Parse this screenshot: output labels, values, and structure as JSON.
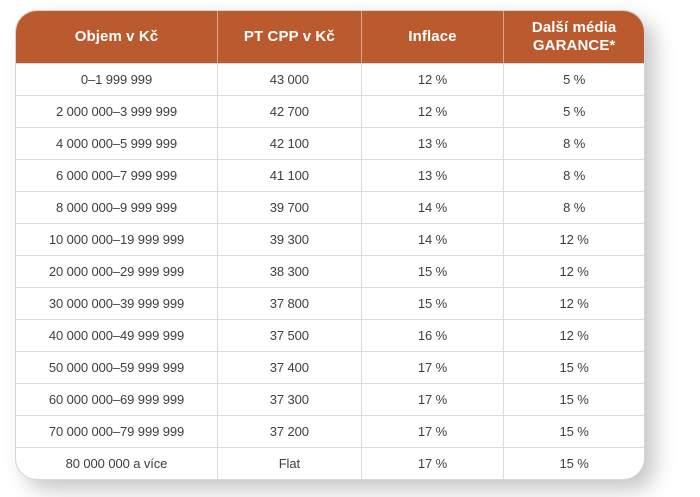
{
  "chart_data": {
    "type": "table",
    "columns": [
      "Objem v Kč",
      "PT CPP v Kč",
      "Inflace",
      "Další média\nGARANCE*"
    ],
    "rows": [
      [
        "0–1 999 999",
        "43 000",
        "12 %",
        "5 %"
      ],
      [
        "2 000 000–3 999 999",
        "42 700",
        "12 %",
        "5 %"
      ],
      [
        "4 000 000–5 999 999",
        "42 100",
        "13 %",
        "8 %"
      ],
      [
        "6 000 000–7 999 999",
        "41 100",
        "13 %",
        "8 %"
      ],
      [
        "8 000 000–9 999 999",
        "39 700",
        "14 %",
        "8 %"
      ],
      [
        "10 000 000–19 999 999",
        "39 300",
        "14 %",
        "12 %"
      ],
      [
        "20 000 000–29 999 999",
        "38 300",
        "15 %",
        "12 %"
      ],
      [
        "30 000 000–39 999 999",
        "37 800",
        "15 %",
        "12 %"
      ],
      [
        "40 000 000–49 999 999",
        "37 500",
        "16 %",
        "12 %"
      ],
      [
        "50 000 000–59 999 999",
        "37 400",
        "17 %",
        "15 %"
      ],
      [
        "60 000 000–69 999 999",
        "37 300",
        "17 %",
        "15 %"
      ],
      [
        "70 000 000–79 999 999",
        "37 200",
        "17 %",
        "15 %"
      ],
      [
        "80 000 000 a více",
        "Flat",
        "17 %",
        "15 %"
      ]
    ]
  },
  "colors": {
    "header_bg": "#bb5a2e",
    "header_text": "#ffffff",
    "body_text": "#3e3e3e",
    "border": "#d6d6d6",
    "grid": "#dcdcdc"
  }
}
